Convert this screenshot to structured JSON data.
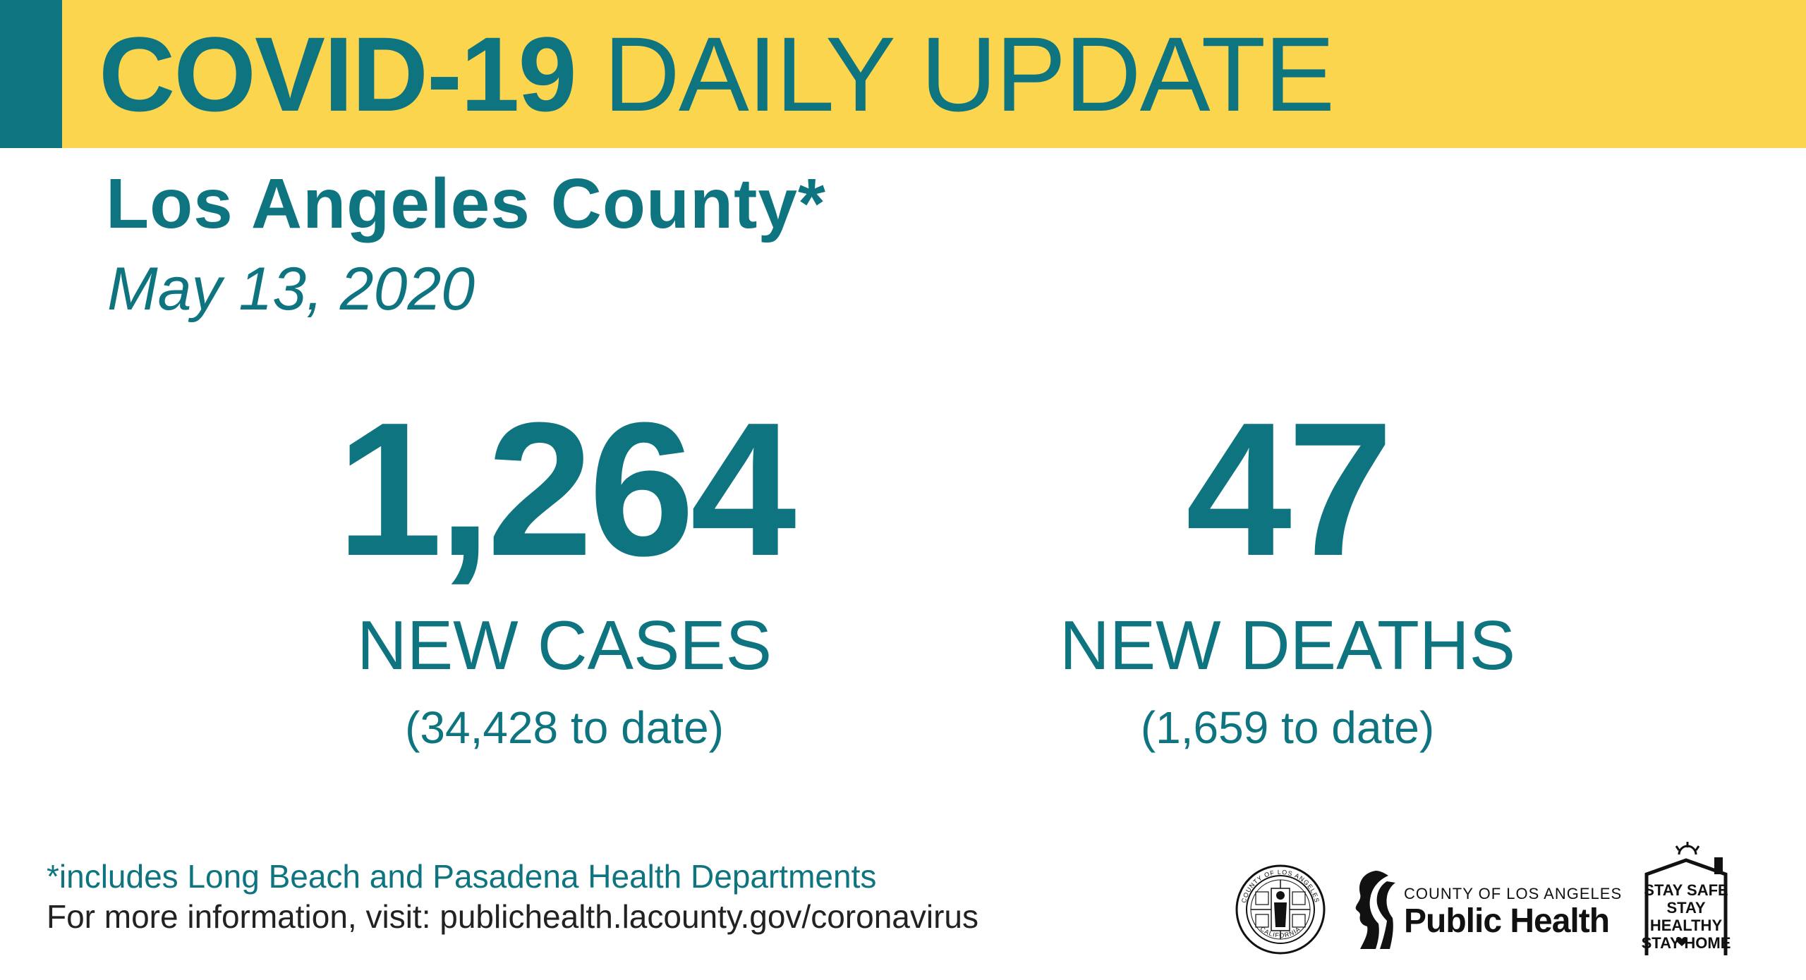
{
  "banner": {
    "title_bold": "COVID-19",
    "title_light": "DAILY UPDATE"
  },
  "header": {
    "county": "Los Angeles County*",
    "date": "May 13, 2020"
  },
  "stats": {
    "cases": {
      "number": "1,264",
      "label": "NEW CASES",
      "to_date": "(34,428 to date)"
    },
    "deaths": {
      "number": "47",
      "label": "NEW DEATHS",
      "to_date": "(1,659 to date)"
    }
  },
  "footer": {
    "footnote": "*includes Long Beach and Pasadena Health Departments",
    "more_info_prefix": "For more information, visit: ",
    "more_info_url": "publichealth.lacounty.gov/coronavirus"
  },
  "logos": {
    "seal_text_top": "COUNTY OF LOS ANGELES",
    "seal_text_bottom": "CALIFORNIA",
    "ph_county": "COUNTY OF LOS ANGELES",
    "ph_name": "Public Health",
    "stay_line1": "STAY SAFE",
    "stay_line2": "STAY HEALTHY",
    "stay_line3": "STAY HOME"
  },
  "colors": {
    "teal": "#0d7480",
    "yellow": "#fcd54e",
    "dark_text": "#222222"
  }
}
